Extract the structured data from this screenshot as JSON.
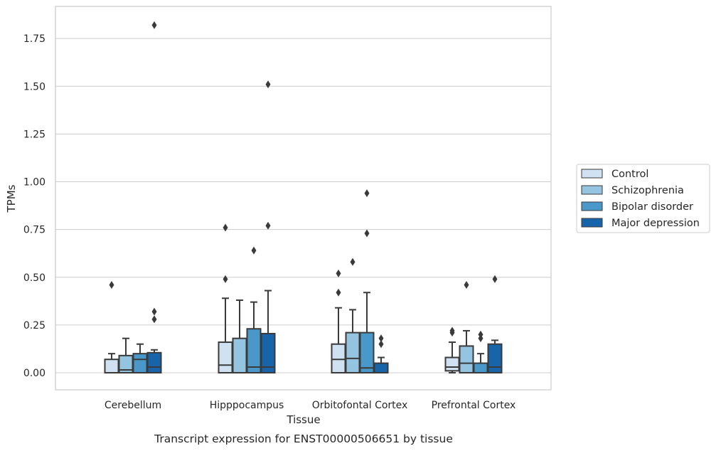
{
  "caption": "Transcript expression for ENST00000506651 by tissue",
  "chart_data": {
    "type": "box",
    "xlabel": "Tissue",
    "ylabel": "TPMs",
    "ylim": [
      -0.09,
      1.925
    ],
    "yticks": [
      "0.00",
      "0.25",
      "0.50",
      "0.75",
      "1.00",
      "1.25",
      "1.50",
      "1.75"
    ],
    "categories": [
      "Cerebellum",
      "Hipppocampus",
      "Orbitofontal Cortex",
      "Prefrontal Cortex"
    ],
    "grid": "horizontal",
    "legend_placement": "right",
    "series": [
      {
        "name": "Control",
        "color": "#d0e1f2",
        "boxes": [
          {
            "whislo": 0.0,
            "q1": 0.0,
            "med": 0.0,
            "q3": 0.07,
            "whishi": 0.1,
            "fliers": [
              0.46
            ]
          },
          {
            "whislo": 0.0,
            "q1": 0.0,
            "med": 0.04,
            "q3": 0.16,
            "whishi": 0.39,
            "fliers": [
              0.49,
              0.76
            ]
          },
          {
            "whislo": 0.0,
            "q1": 0.0,
            "med": 0.07,
            "q3": 0.15,
            "whishi": 0.34,
            "fliers": [
              0.42,
              0.52
            ]
          },
          {
            "whislo": 0.0,
            "q1": 0.01,
            "med": 0.03,
            "q3": 0.08,
            "whishi": 0.16,
            "fliers": [
              0.21,
              0.22
            ]
          }
        ]
      },
      {
        "name": "Schizophrenia",
        "color": "#94c4df",
        "boxes": [
          {
            "whislo": 0.0,
            "q1": 0.0,
            "med": 0.015,
            "q3": 0.09,
            "whishi": 0.18,
            "fliers": []
          },
          {
            "whislo": 0.0,
            "q1": 0.0,
            "med": 0.0,
            "q3": 0.18,
            "whishi": 0.38,
            "fliers": []
          },
          {
            "whislo": 0.0,
            "q1": 0.0,
            "med": 0.075,
            "q3": 0.21,
            "whishi": 0.33,
            "fliers": [
              0.58
            ]
          },
          {
            "whislo": 0.0,
            "q1": 0.0,
            "med": 0.05,
            "q3": 0.14,
            "whishi": 0.22,
            "fliers": [
              0.46
            ]
          }
        ]
      },
      {
        "name": "Bipolar disorder",
        "color": "#4a98c9",
        "boxes": [
          {
            "whislo": 0.0,
            "q1": 0.0,
            "med": 0.07,
            "q3": 0.1,
            "whishi": 0.15,
            "fliers": []
          },
          {
            "whislo": 0.0,
            "q1": 0.0,
            "med": 0.03,
            "q3": 0.23,
            "whishi": 0.37,
            "fliers": [
              0.64
            ]
          },
          {
            "whislo": 0.0,
            "q1": 0.0,
            "med": 0.025,
            "q3": 0.21,
            "whishi": 0.42,
            "fliers": [
              0.73,
              0.94
            ]
          },
          {
            "whislo": 0.0,
            "q1": 0.0,
            "med": 0.0,
            "q3": 0.05,
            "whishi": 0.1,
            "fliers": [
              0.18,
              0.2
            ]
          }
        ]
      },
      {
        "name": "Major depression",
        "color": "#1764ab",
        "boxes": [
          {
            "whislo": 0.0,
            "q1": 0.0,
            "med": 0.03,
            "q3": 0.105,
            "whishi": 0.12,
            "fliers": [
              0.28,
              0.32,
              1.82
            ]
          },
          {
            "whislo": 0.0,
            "q1": 0.0,
            "med": 0.03,
            "q3": 0.205,
            "whishi": 0.43,
            "fliers": [
              0.77,
              1.51
            ]
          },
          {
            "whislo": 0.0,
            "q1": 0.0,
            "med": 0.0,
            "q3": 0.05,
            "whishi": 0.08,
            "fliers": [
              0.15,
              0.18
            ]
          },
          {
            "whislo": 0.0,
            "q1": 0.0,
            "med": 0.03,
            "q3": 0.15,
            "whishi": 0.17,
            "fliers": [
              0.49
            ]
          }
        ]
      }
    ]
  }
}
